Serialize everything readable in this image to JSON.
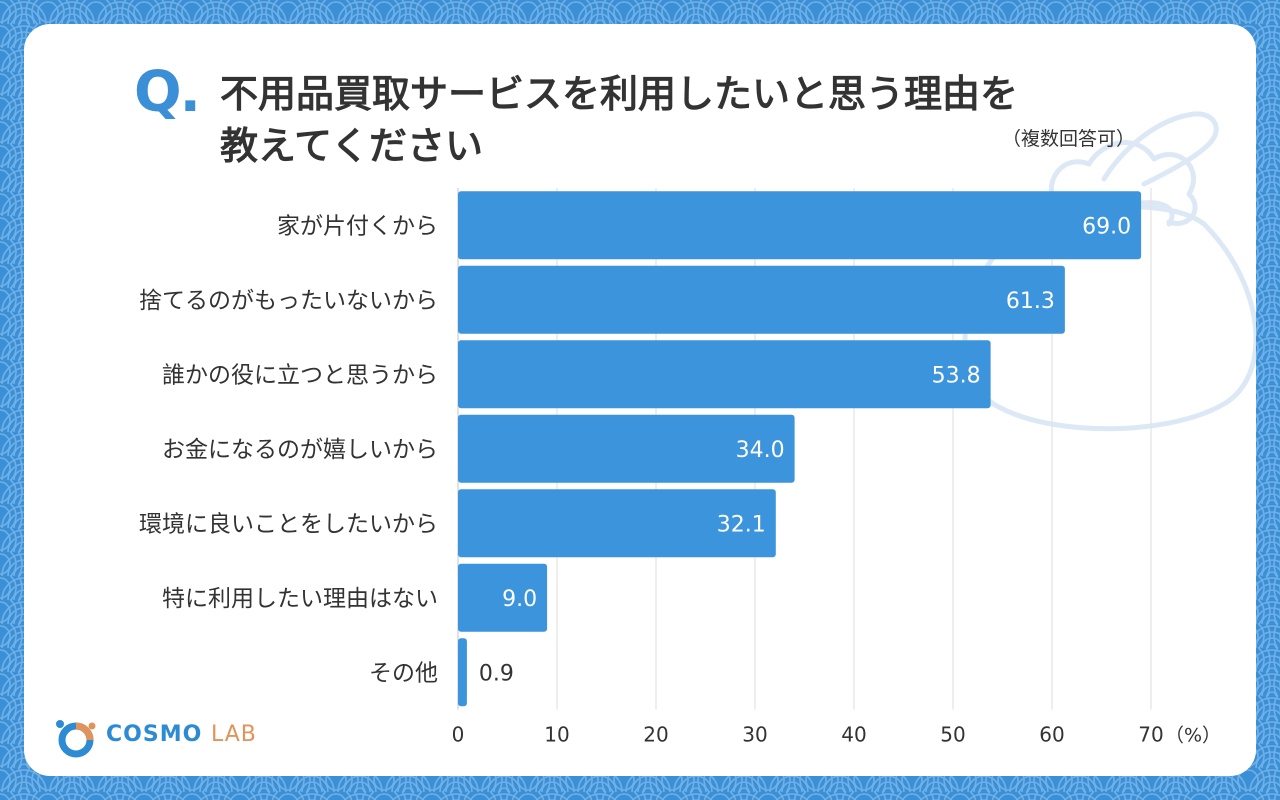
{
  "colors": {
    "bar": "#3b94dc",
    "background": "#3b8fd6",
    "text": "#333333",
    "grid": "#e3e3e3",
    "accent": "#3b8fd6",
    "logo_blue": "#2d8bd4",
    "logo_orange": "#e0935a"
  },
  "header": {
    "q_label": "Q.",
    "title_line1": "不用品買取サービスを利用したいと思う理由を",
    "title_line2": "教えてください",
    "note": "（複数回答可）"
  },
  "logo": {
    "part1": "COSMO",
    "part2": "LAB"
  },
  "chart_data": {
    "type": "bar",
    "orientation": "horizontal",
    "categories": [
      "家が片付くから",
      "捨てるのがもったいないから",
      "誰かの役に立つと思うから",
      "お金になるのが嬉しいから",
      "環境に良いことをしたいから",
      "特に利用したい理由はない",
      "その他"
    ],
    "values": [
      69.0,
      61.3,
      53.8,
      34.0,
      32.1,
      9.0,
      0.9
    ],
    "value_labels": [
      "69.0",
      "61.3",
      "53.8",
      "34.0",
      "32.1",
      "9.0",
      "0.9"
    ],
    "xlim": [
      0,
      70
    ],
    "xticks": [
      0,
      10,
      20,
      30,
      40,
      50,
      60,
      70
    ],
    "xtick_labels": [
      "0",
      "10",
      "20",
      "30",
      "40",
      "50",
      "60",
      "70"
    ],
    "unit_label": "（%）",
    "title": "不用品買取サービスを利用したいと思う理由を教えてください",
    "grid": true
  }
}
